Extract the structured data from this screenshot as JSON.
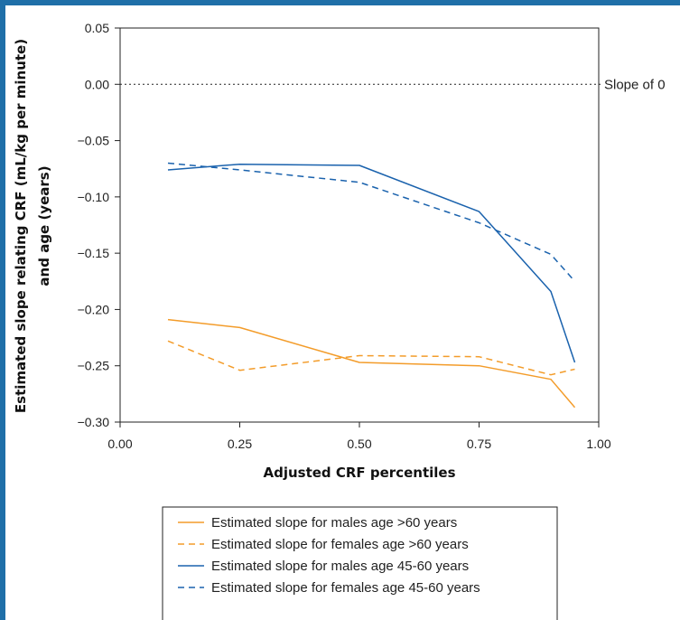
{
  "chart_data": {
    "type": "line",
    "title": "",
    "xlabel": "Adjusted CRF percentiles",
    "ylabel_lines": [
      "Estimated slope relating CRF (mL/kg per minute)",
      "and age (years)"
    ],
    "xlim": [
      0.0,
      1.0
    ],
    "ylim": [
      -0.3,
      0.05
    ],
    "xticks": [
      0.0,
      0.25,
      0.5,
      0.75,
      1.0
    ],
    "xtick_labels": [
      "0.00",
      "0.25",
      "0.50",
      "0.75",
      "1.00"
    ],
    "yticks": [
      0.05,
      0.0,
      -0.05,
      -0.1,
      -0.15,
      -0.2,
      -0.25,
      -0.3
    ],
    "ytick_labels": [
      "0.05",
      "0.00",
      "−0.05",
      "−0.10",
      "−0.15",
      "−0.20",
      "−0.25",
      "−0.30"
    ],
    "reference_line": {
      "y": 0.0,
      "label": "Slope of 0",
      "style": "dotted"
    },
    "legend_position": "bottom",
    "colors": {
      "orange": "#f39c2a",
      "blue": "#1a62ad",
      "frame": "#1f6fa8"
    },
    "series": [
      {
        "name": "Estimated slope for males age >60 years",
        "color": "#f39c2a",
        "dash": "solid",
        "x": [
          0.1,
          0.25,
          0.5,
          0.75,
          0.9,
          0.95
        ],
        "y": [
          -0.209,
          -0.216,
          -0.247,
          -0.25,
          -0.262,
          -0.287
        ]
      },
      {
        "name": "Estimated slope for females age >60 years",
        "color": "#f39c2a",
        "dash": "dashed",
        "x": [
          0.1,
          0.25,
          0.5,
          0.75,
          0.9,
          0.95
        ],
        "y": [
          -0.228,
          -0.254,
          -0.241,
          -0.242,
          -0.258,
          -0.253
        ]
      },
      {
        "name": "Estimated slope for males age 45-60 years",
        "color": "#1a62ad",
        "dash": "solid",
        "x": [
          0.1,
          0.25,
          0.5,
          0.75,
          0.9,
          0.95
        ],
        "y": [
          -0.076,
          -0.071,
          -0.072,
          -0.113,
          -0.184,
          -0.247
        ]
      },
      {
        "name": "Estimated slope for females age 45-60 years",
        "color": "#1a62ad",
        "dash": "dashed",
        "x": [
          0.1,
          0.25,
          0.5,
          0.75,
          0.9,
          0.95
        ],
        "y": [
          -0.07,
          -0.076,
          -0.087,
          -0.123,
          -0.151,
          -0.175
        ]
      }
    ]
  }
}
